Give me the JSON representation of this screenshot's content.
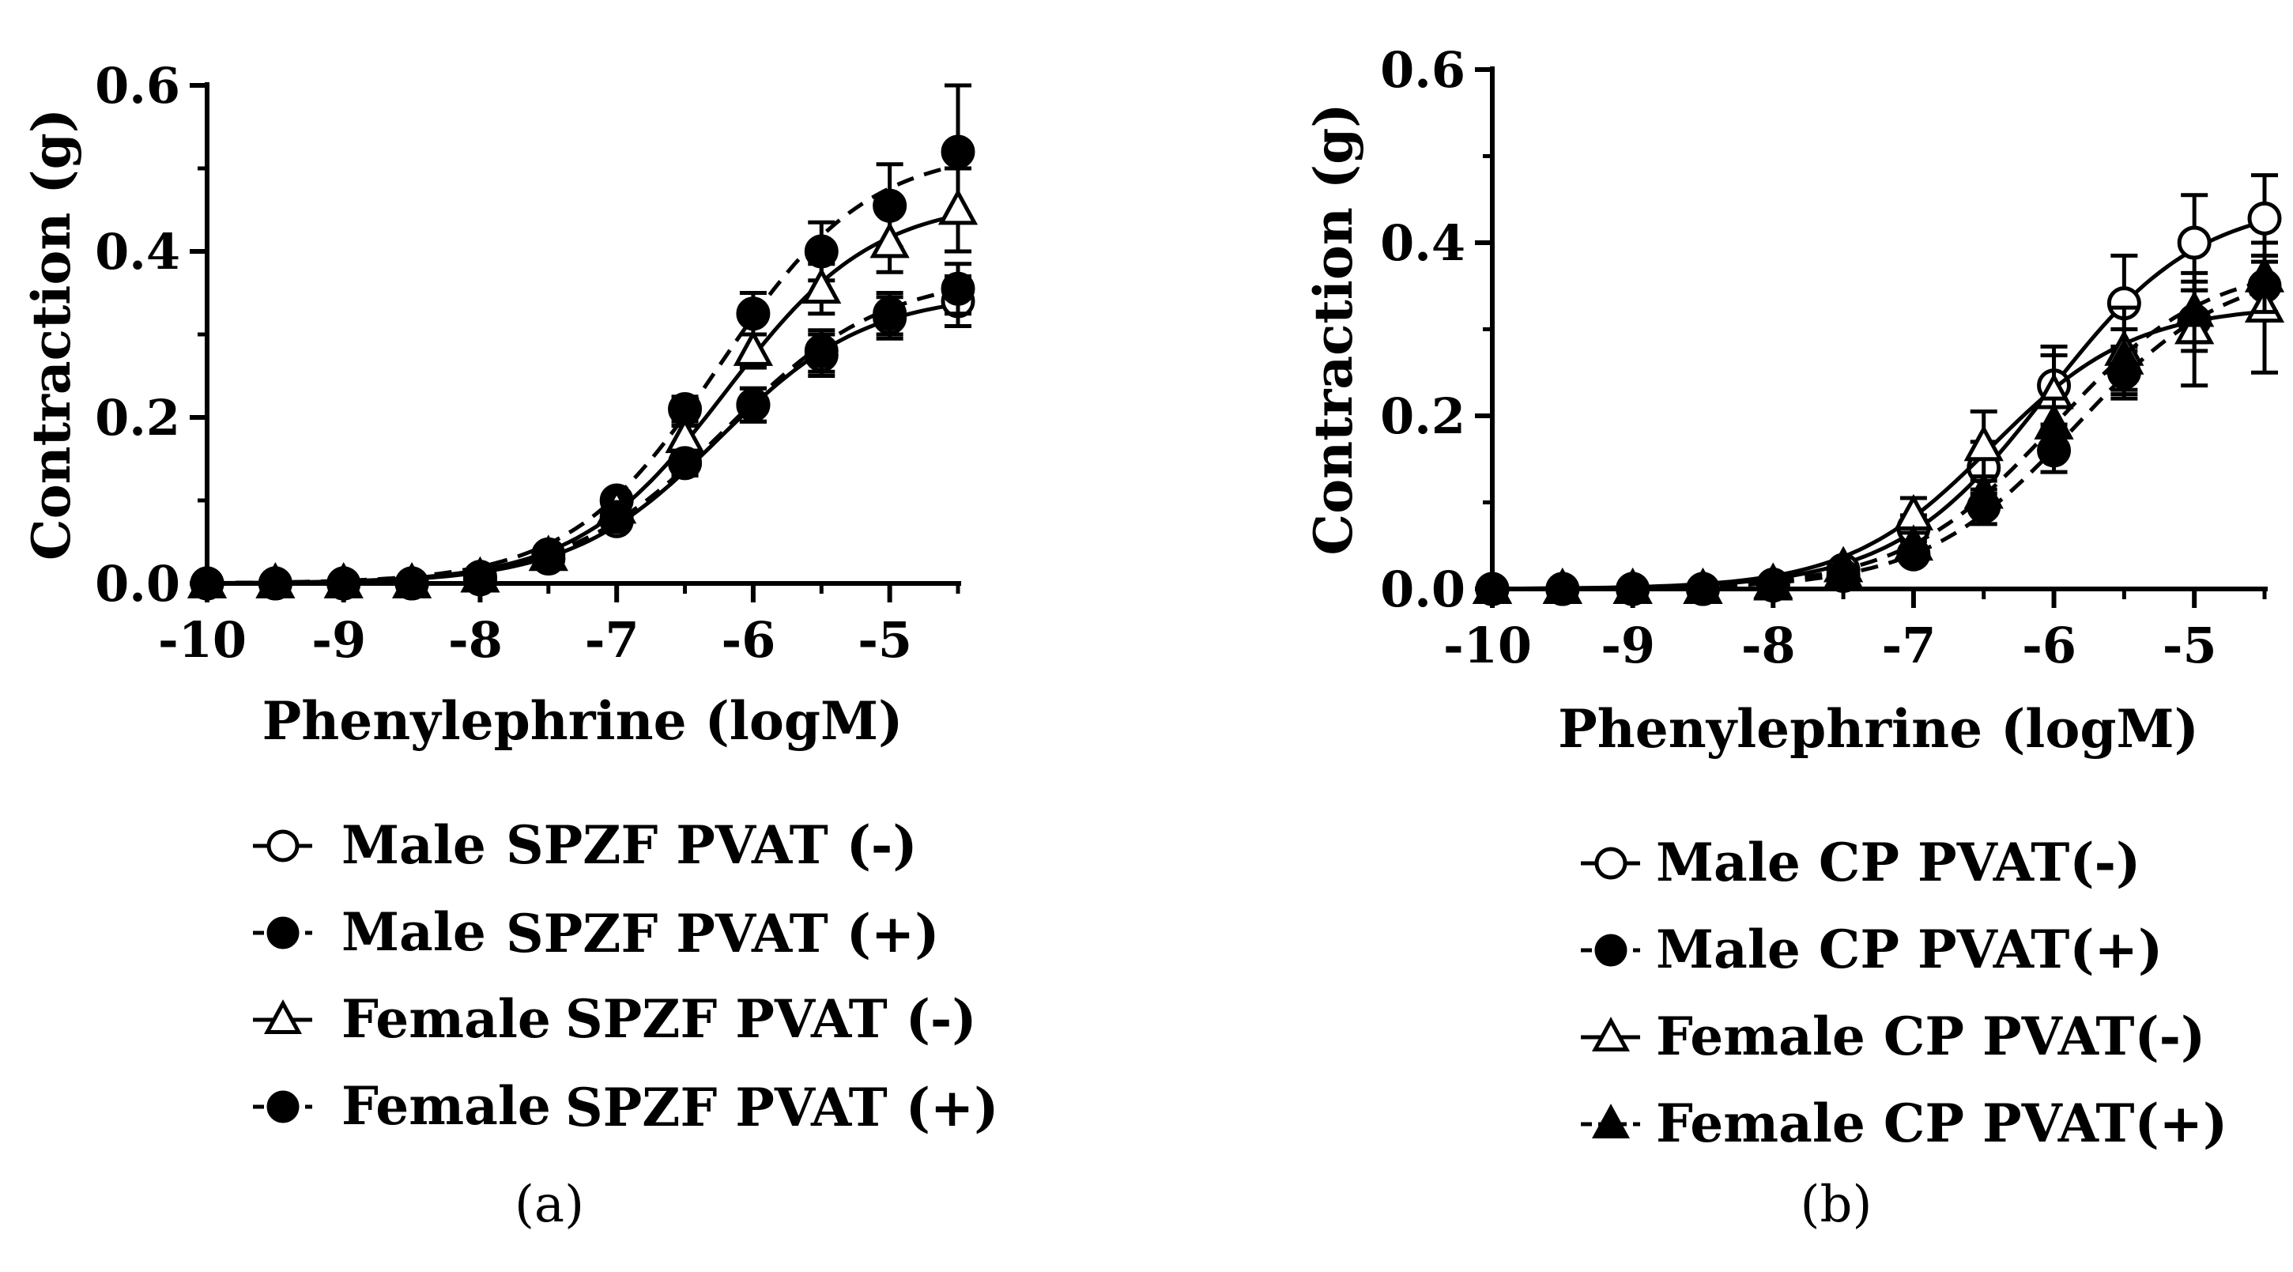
{
  "chart_data": [
    {
      "type": "line",
      "caption": "(a)",
      "xlabel": "Phenylephrine (logM)",
      "ylabel": "Contraction (g)",
      "xlim": [
        -10,
        -4.5
      ],
      "ylim": [
        0,
        0.6
      ],
      "x_ticks": [
        -10,
        -9,
        -8,
        -7,
        -6,
        -5
      ],
      "x_tick_labels": [
        "-10",
        "-9",
        "-8",
        "-7",
        "-6",
        "-5"
      ],
      "y_ticks": [
        0,
        0.2,
        0.4,
        0.6
      ],
      "y_tick_labels": [
        "0.0",
        "0.2",
        "0.4",
        "0.6"
      ],
      "x": [
        -10,
        -9.5,
        -9,
        -8.5,
        -8,
        -7.5,
        -7,
        -6.5,
        -6,
        -5.5,
        -5,
        -4.5
      ],
      "series": [
        {
          "name": "Male",
          "group": "SPZF PVAT (-)",
          "marker": "circle-open",
          "line": "solid",
          "values": [
            0,
            0,
            0,
            0,
            0.005,
            0.03,
            0.075,
            0.145,
            0.215,
            0.275,
            0.32,
            0.34
          ],
          "errors": [
            0,
            0,
            0,
            0,
            0.003,
            0.008,
            0.01,
            0.015,
            0.02,
            0.025,
            0.025,
            0.03
          ]
        },
        {
          "name": "Male",
          "group": "SPZF PVAT (+)",
          "marker": "circle-filled",
          "line": "dashed",
          "values": [
            0,
            0,
            0,
            0,
            0.008,
            0.035,
            0.1,
            0.21,
            0.325,
            0.4,
            0.455,
            0.52
          ],
          "errors": [
            0,
            0,
            0,
            0,
            0.003,
            0.008,
            0.012,
            0.015,
            0.025,
            0.035,
            0.05,
            0.08
          ]
        },
        {
          "name": "Female",
          "group": "SPZF PVAT (-)",
          "marker": "triangle-open",
          "line": "solid",
          "values": [
            0,
            0,
            0,
            0,
            0.007,
            0.033,
            0.09,
            0.175,
            0.28,
            0.355,
            0.41,
            0.45
          ],
          "errors": [
            0,
            0,
            0,
            0,
            0.003,
            0.008,
            0.012,
            0.015,
            0.02,
            0.03,
            0.035,
            0.05
          ]
        },
        {
          "name": "Female",
          "group": "SPZF PVAT (+)",
          "marker": "circle-filled",
          "line": "dashed",
          "values": [
            0,
            0,
            0,
            0,
            0.005,
            0.03,
            0.08,
            0.145,
            0.215,
            0.28,
            0.325,
            0.355
          ],
          "errors": [
            0,
            0,
            0,
            0,
            0.003,
            0.008,
            0.01,
            0.015,
            0.02,
            0.025,
            0.025,
            0.03
          ]
        }
      ],
      "legend": [
        {
          "name": "Male",
          "group": "SPZF PVAT (-)"
        },
        {
          "name": "Male",
          "group": "SPZF PVAT (+)"
        },
        {
          "name": "Female",
          "group": "SPZF PVAT (-)"
        },
        {
          "name": "Female",
          "group": "SPZF PVAT (+)"
        }
      ]
    },
    {
      "type": "line",
      "caption": "(b)",
      "xlabel": "Phenylephrine (logM)",
      "ylabel": "Contraction (g)",
      "xlim": [
        -10,
        -4.5
      ],
      "ylim": [
        0,
        0.6
      ],
      "x_ticks": [
        -10,
        -9,
        -8,
        -7,
        -6,
        -5
      ],
      "x_tick_labels": [
        "-10",
        "-9",
        "-8",
        "-7",
        "-6",
        "-5"
      ],
      "y_ticks": [
        0,
        0.2,
        0.4,
        0.6
      ],
      "y_tick_labels": [
        "0.0",
        "0.2",
        "0.4",
        "0.6"
      ],
      "x": [
        -10,
        -9.5,
        -9,
        -8.5,
        -8,
        -7.5,
        -7,
        -6.5,
        -6,
        -5.5,
        -5,
        -4.5
      ],
      "series": [
        {
          "name": "Male CP PVAT(-)",
          "marker": "circle-open",
          "line": "solid",
          "values": [
            0,
            0,
            0,
            0,
            0.005,
            0.022,
            0.07,
            0.14,
            0.235,
            0.33,
            0.4,
            0.428
          ],
          "errors": [
            0,
            0,
            0,
            0,
            0.003,
            0.008,
            0.015,
            0.03,
            0.045,
            0.055,
            0.055,
            0.05
          ]
        },
        {
          "name": "Male CP PVAT(+)",
          "marker": "circle-filled",
          "line": "dashed",
          "values": [
            0,
            0,
            0,
            0,
            0.004,
            0.015,
            0.04,
            0.095,
            0.16,
            0.25,
            0.31,
            0.35
          ],
          "errors": [
            0,
            0,
            0,
            0,
            0.003,
            0.006,
            0.01,
            0.02,
            0.025,
            0.03,
            0.035,
            0.035
          ]
        },
        {
          "name": "Female CP PVAT(-)",
          "marker": "triangle-open",
          "line": "solid",
          "values": [
            0,
            0,
            0,
            0,
            0.006,
            0.025,
            0.085,
            0.165,
            0.225,
            0.275,
            0.3,
            0.325
          ],
          "errors": [
            0,
            0,
            0,
            0,
            0.003,
            0.008,
            0.02,
            0.04,
            0.045,
            0.05,
            0.065,
            0.075
          ]
        },
        {
          "name": "Female CP PVAT(+)",
          "marker": "triangle-filled",
          "line": "dashed",
          "values": [
            0,
            0,
            0,
            0,
            0.004,
            0.018,
            0.05,
            0.11,
            0.19,
            0.265,
            0.32,
            0.36
          ],
          "errors": [
            0,
            0,
            0,
            0,
            0.003,
            0.006,
            0.012,
            0.02,
            0.03,
            0.035,
            0.035,
            0.04
          ]
        }
      ],
      "legend": [
        {
          "name": "Male CP PVAT(-)"
        },
        {
          "name": "Male CP PVAT(+)"
        },
        {
          "name": "Female CP PVAT(-)"
        },
        {
          "name": "Female CP PVAT(+)"
        }
      ]
    }
  ]
}
